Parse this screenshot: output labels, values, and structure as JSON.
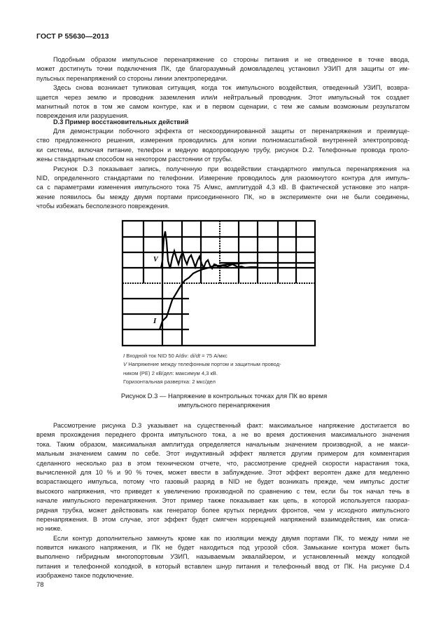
{
  "header": {
    "title": "ГОСТ Р 55630—2013"
  },
  "paragraphs_top": [
    [
      "Подобным образом импульсное перенапряжение со стороны питания и не отведенное в точке ввода,",
      "может достигнуть точки подключения ПК, где благоразумный домовладелец установил УЗИП для защиты от им-",
      "пульсных перенапряжений со стороны линии электропередачи."
    ],
    [
      "Здесь снова возникает тупиковая ситуация, когда ток импульсного воздействия, отведенный УЗИП, возвра-",
      "щается через землю и проводник заземления или/и нейтральный проводник. Этот импульсный ток  создает",
      "магнитный поток в том же самом контуре, как и в первом сценарии, с тем же самым возможным результатом",
      "повреждения или разрушения."
    ]
  ],
  "section_heading": "D.3 Пример восстановительных действий",
  "paragraphs_mid": [
    [
      "Для демонстрации побочного  эффекта от нескоординированной защиты от перенапряжения и преимуще-",
      "ство предложенного решения, измерения проводились для копии полномасштабной внутренней электропровод-",
      "ки системы, включая питание, телефон и медную водопроводную трубу, рисунок D.2. Телефонные провода проло-",
      "жены стандартным способом на некотором расстоянии от трубы."
    ],
    [
      "Рисунок D.3 показывает запись, полученную при воздействии стандартного импульса перенапряжения на",
      "NID, определенного стандартами по телефонии. Измерение проводилось для разомкнутого контура для импуль-",
      "са с параметрами изменения  импульсного тока 75 А/мкс, амплитудой 4,3 кВ. В фактической установке это напря-",
      "жение появилось бы между двумя портами присоединенного ПК, но в эксперименте они не были соединены,",
      "чтобы избежать бесполезного повреждения."
    ]
  ],
  "figure": {
    "trace_labels": {
      "voltage": "V",
      "current": "I"
    },
    "legend": {
      "line1_symbol": "I",
      "line1_text": "Входной ток NID 50 A/div: ",
      "line1_italic": "di/dt",
      "line1_rest": " = 75 А/мкс",
      "line2_symbol": "V",
      "line2_text": "Напряжение между телефонным портом и защитным провод-",
      "line3": "ником (PE) 2 кВ/дел: максимум 4,3 кВ.",
      "line4": "Горизонтальная развертка: 2 мкс/дел"
    },
    "caption_line1": "Рисунок D.3 — Напряжение в контрольных точках для ПК во время",
    "caption_line2": "импульсного перенапряжения"
  },
  "paragraphs_bottom": [
    [
      "Рассмотрение рисунка D.3 указывает на существенный факт: максимальное напряжение достигается во",
      "время прохождения переднего фронта импульсного тока, а не во время достижения максимального значения",
      "тока. Таким образом, максимальная амплитуда определяется  начальным значением производной, а не макси-",
      "мальным значением самим по себе. Этот индуктивный эффект является другим примером для комментария",
      "сделанного несколько раз в этом техническом отчете, что, рассмотрение средней скорости нарастания тока,",
      "вычисленной для 10 % и 90 % точек, может ввести в заблуждение. Этот эффект вероятен даже для медленно",
      "возрастающего импульса, потому что газовый разряд в NID не будет возникать прежде, чем импульс достиг",
      "высокого напряжения, что приведет к увеличению производной по сравнению с тем, если бы ток начал течь в",
      "начале импульсного перенапряжения. Этот пример также показывает как цепь, в которой используется газораз-",
      "рядная трубка, может действовать как генератор более крутых передних фронтов, чем у исходного импульсного",
      "перенапряжения. В этом случае, этот эффект будет смягчен коррекцией напряжений взаимодействия, как описа-",
      "но ниже."
    ],
    [
      "Если  контур дополнительно  замкнуть кроме как по изоляции между двумя портами ПК, то между ними не",
      "появится никакого напряжения, и ПК не будет находиться под угрозой сбоя. Замыкание контура может быть",
      "выполнено гибридным многопортовым УЗИП, называемым эквалайзером,  и установленный между колодкой",
      "питания и телефонной колодкой,  в который вставлен шнур питания и телефонный ввод от ПК. На рисунке D.4",
      "изображено такое подключение."
    ]
  ],
  "page_number": "78"
}
